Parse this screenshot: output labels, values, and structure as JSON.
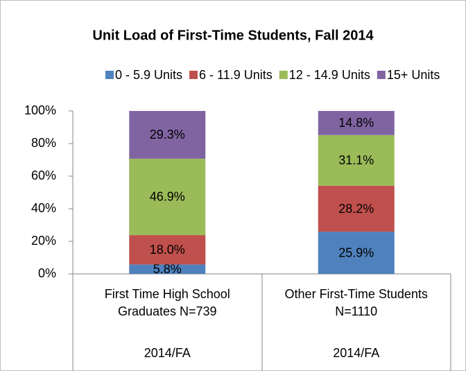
{
  "chart_data": {
    "type": "stacked_bar",
    "title": "Unit Load of First-Time Students, Fall 2014",
    "categories": [
      "First Time High School Graduates N=739",
      "Other First-Time Students N=1110"
    ],
    "groups": [
      "2014/FA",
      "2014/FA"
    ],
    "series": [
      {
        "name": "0 - 5.9 Units",
        "color": "#4f81bd",
        "values": [
          5.8,
          25.9
        ],
        "value_labels": [
          "5.8%",
          "25.9%"
        ]
      },
      {
        "name": "6 - 11.9 Units",
        "color": "#c0504d",
        "values": [
          18.0,
          28.2
        ],
        "value_labels": [
          "18.0%",
          "28.2%"
        ]
      },
      {
        "name": "12 - 14.9 Units",
        "color": "#9bbb59",
        "values": [
          46.9,
          31.1
        ],
        "value_labels": [
          "46.9%",
          "31.1%"
        ]
      },
      {
        "name": "15+ Units",
        "color": "#8064a2",
        "values": [
          29.3,
          14.8
        ],
        "value_labels": [
          "29.3%",
          "14.8%"
        ]
      }
    ],
    "ylim": [
      0,
      100
    ],
    "yticks": [
      {
        "value": 0,
        "label": "0%"
      },
      {
        "value": 20,
        "label": "20%"
      },
      {
        "value": 40,
        "label": "40%"
      },
      {
        "value": 60,
        "label": "60%"
      },
      {
        "value": 80,
        "label": "80%"
      },
      {
        "value": 100,
        "label": "100%"
      }
    ],
    "grid": false,
    "legend": "top"
  }
}
